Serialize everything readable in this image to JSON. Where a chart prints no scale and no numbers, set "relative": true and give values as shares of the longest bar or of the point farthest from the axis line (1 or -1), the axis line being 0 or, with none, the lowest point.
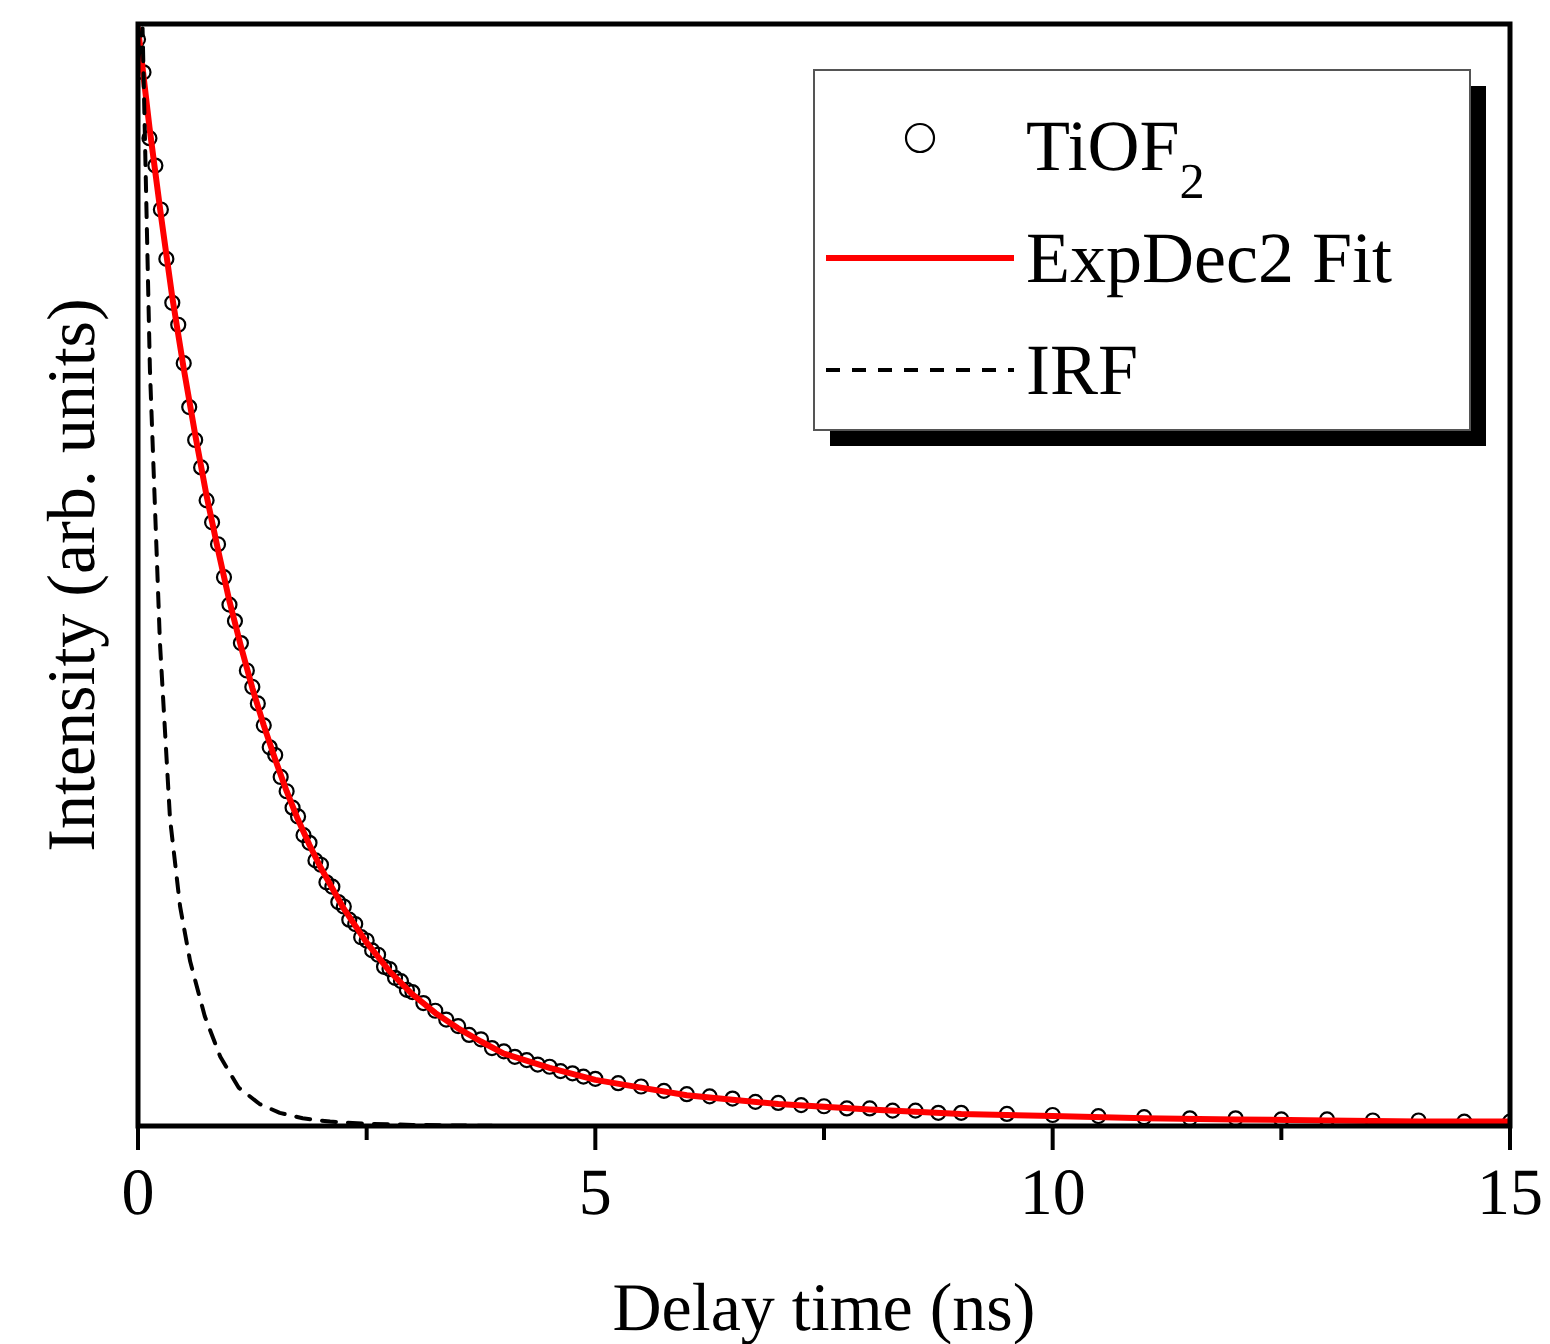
{
  "chart_data": {
    "type": "line",
    "xlabel": "Delay time (ns)",
    "ylabel": "Intensity (arb. units)",
    "relative": true,
    "xlim": [
      0,
      15
    ],
    "xticks": [
      0,
      {
        "value": 2.5,
        "label": null
      },
      5,
      {
        "value": 7.5,
        "label": null
      },
      10,
      {
        "value": 12.5,
        "label": null
      },
      15
    ],
    "legend": "top right",
    "grid": false,
    "series": [
      {
        "name": "TiOF$_{2}$",
        "type": "scatter",
        "marker": "circle",
        "color": "#000000",
        "x": [
          0,
          0.06,
          0.125,
          0.19,
          0.25,
          0.31,
          0.375,
          0.44,
          0.5,
          0.56,
          0.625,
          0.69,
          0.75,
          0.81,
          0.875,
          0.94,
          1,
          1.06,
          1.125,
          1.19,
          1.25,
          1.31,
          1.375,
          1.44,
          1.5,
          1.56,
          1.625,
          1.69,
          1.75,
          1.81,
          1.875,
          1.94,
          2,
          2.06,
          2.125,
          2.19,
          2.25,
          2.31,
          2.375,
          2.44,
          2.5,
          2.56,
          2.625,
          2.69,
          2.75,
          2.81,
          2.875,
          2.94,
          3,
          3.12,
          3.25,
          3.37,
          3.5,
          3.62,
          3.75,
          3.87,
          4,
          4.12,
          4.25,
          4.37,
          4.5,
          4.62,
          4.75,
          4.87,
          5,
          5.25,
          5.5,
          5.75,
          6,
          6.25,
          6.5,
          6.75,
          7,
          7.25,
          7.5,
          7.75,
          8,
          8.25,
          8.5,
          8.75,
          9,
          9.5,
          10,
          10.5,
          11,
          11.5,
          12,
          12.5,
          13,
          13.5,
          14,
          14.5,
          15
        ],
        "values": [
          0.99,
          0.96,
          0.9,
          0.875,
          0.835,
          0.79,
          0.75,
          0.73,
          0.695,
          0.655,
          0.625,
          0.6,
          0.57,
          0.55,
          0.53,
          0.5,
          0.475,
          0.46,
          0.44,
          0.415,
          0.4,
          0.385,
          0.365,
          0.345,
          0.338,
          0.318,
          0.305,
          0.29,
          0.282,
          0.265,
          0.258,
          0.242,
          0.238,
          0.222,
          0.218,
          0.204,
          0.2,
          0.188,
          0.184,
          0.172,
          0.169,
          0.16,
          0.156,
          0.145,
          0.143,
          0.135,
          0.132,
          0.124,
          0.122,
          0.112,
          0.105,
          0.097,
          0.091,
          0.083,
          0.079,
          0.071,
          0.068,
          0.063,
          0.06,
          0.056,
          0.054,
          0.05,
          0.048,
          0.045,
          0.043,
          0.039,
          0.036,
          0.032,
          0.029,
          0.027,
          0.025,
          0.022,
          0.021,
          0.019,
          0.018,
          0.016,
          0.016,
          0.014,
          0.014,
          0.012,
          0.012,
          0.011,
          0.01,
          0.009,
          0.008,
          0.007,
          0.007,
          0.006,
          0.006,
          0.005,
          0.005,
          0.004,
          0.004
        ]
      },
      {
        "name": "ExpDec2 Fit",
        "line_style": "solid",
        "color": "#ff0000",
        "x": [
          0,
          0.125,
          0.25,
          0.375,
          0.5,
          0.625,
          0.75,
          0.875,
          1,
          1.125,
          1.25,
          1.375,
          1.5,
          1.625,
          1.75,
          1.875,
          2,
          2.25,
          2.5,
          2.75,
          3,
          3.25,
          3.5,
          3.75,
          4,
          4.5,
          5,
          5.5,
          6,
          6.5,
          7,
          8,
          9,
          10,
          11,
          12,
          13,
          14,
          15
        ],
        "values": [
          1.0,
          0.91,
          0.83,
          0.755,
          0.69,
          0.63,
          0.574,
          0.525,
          0.478,
          0.437,
          0.399,
          0.365,
          0.334,
          0.305,
          0.279,
          0.256,
          0.235,
          0.198,
          0.167,
          0.141,
          0.12,
          0.103,
          0.089,
          0.077,
          0.066,
          0.053,
          0.042,
          0.035,
          0.028,
          0.024,
          0.02,
          0.015,
          0.011,
          0.009,
          0.007,
          0.006,
          0.005,
          0.004,
          0.004
        ]
      },
      {
        "name": "IRF",
        "line_style": "dashed",
        "color": "#000000",
        "x": [
          0,
          0.05,
          0.13,
          0.24,
          0.35,
          0.46,
          0.57,
          0.73,
          0.9,
          1.1,
          1.33,
          1.55,
          1.8,
          2.1,
          2.5,
          3,
          4,
          6,
          10,
          15
        ],
        "values": [
          0.97,
          1.0,
          0.69,
          0.44,
          0.28,
          0.2,
          0.15,
          0.1,
          0.063,
          0.035,
          0.02,
          0.012,
          0.007,
          0.004,
          0.002,
          0.001,
          0,
          0,
          0,
          0
        ]
      }
    ]
  }
}
